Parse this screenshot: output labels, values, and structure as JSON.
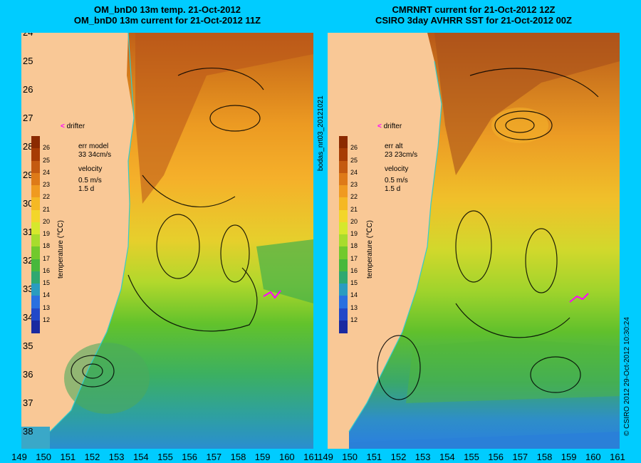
{
  "panels": [
    {
      "title_line1": "OM_bnD0 13m temp. 21-Oct-2012",
      "title_line2": "OM_bnD0 13m current for 21-Oct-2012 11Z",
      "err_label": "err model",
      "err_value": "33 34cm/s",
      "velocity_label": "velocity",
      "velocity_scale": "0.5 m/s",
      "velocity_time": "1.5 d",
      "drifter_label": "drifter",
      "colorbar_title": "temperature (℃C)"
    },
    {
      "title_line1": "CMRNRT current for 21-Oct-2012 12Z",
      "title_line2": "CSIRO 3day AVHRR SST for 21-Oct-2012 00Z",
      "err_label": "err alt",
      "err_value": "23 23cm/s",
      "velocity_label": "velocity",
      "velocity_scale": "0.5 m/s",
      "velocity_time": "1.5 d",
      "drifter_label": "drifter",
      "colorbar_title": "temperature (℃C)"
    }
  ],
  "side_labels": {
    "middle": "bodas_nrt03_20121021",
    "right": "© CSIRO 2012   29-Oct-2012 10:30:24"
  },
  "axes": {
    "lat_ticks": [
      "24",
      "25",
      "26",
      "27",
      "28",
      "29",
      "30",
      "31",
      "32",
      "33",
      "34",
      "35",
      "36",
      "37",
      "38"
    ],
    "lon_ticks_left": [
      "149",
      "150",
      "151",
      "152",
      "153",
      "154",
      "155",
      "156",
      "157",
      "158",
      "159",
      "160",
      "161"
    ],
    "lon_ticks_right": [
      "149",
      "150",
      "151",
      "152",
      "153",
      "154",
      "155",
      "156",
      "157",
      "158",
      "159",
      "160",
      "161"
    ]
  },
  "colorbar": {
    "labels": [
      "26",
      "25",
      "24",
      "23",
      "22",
      "21",
      "20",
      "19",
      "18",
      "17",
      "16",
      "15",
      "14",
      "13",
      "12"
    ],
    "colors": [
      "#8b2a00",
      "#a63c05",
      "#c45a10",
      "#de7a18",
      "#f09a20",
      "#f5b824",
      "#f3d62a",
      "#d6e82c",
      "#a8dc2c",
      "#72c92c",
      "#48b83c",
      "#2fa870",
      "#2a9cc0",
      "#2a70e0",
      "#2248c8",
      "#1a2aa0"
    ]
  },
  "colors": {
    "background": "#00ccff",
    "land": "#f9c896",
    "coastline": "#33cccc",
    "drifter": "#ff00ff"
  }
}
